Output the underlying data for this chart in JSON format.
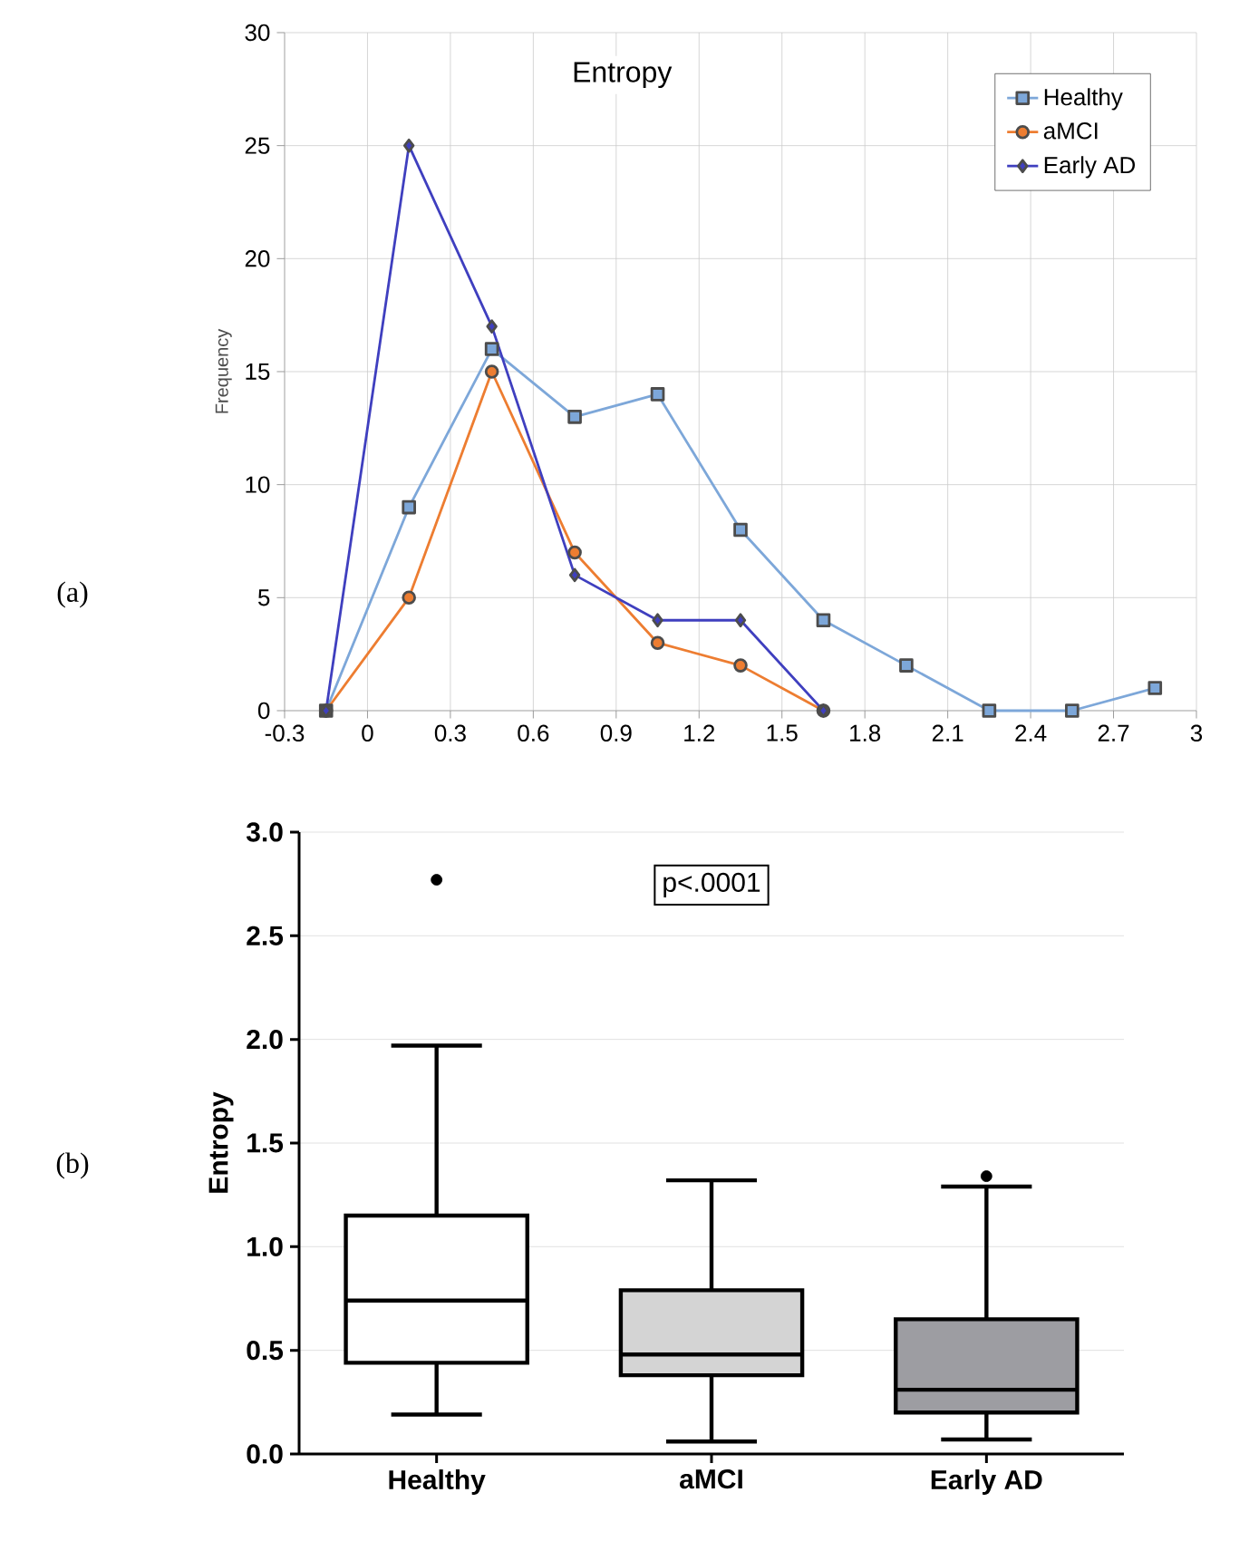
{
  "chart_data": [
    {
      "type": "line",
      "title": "Entropy",
      "ylabel": "Frequency",
      "annotations": [
        "(a)"
      ],
      "xlim": [
        -0.3,
        3
      ],
      "xticks": [
        -0.3,
        0,
        0.3,
        0.6,
        0.9,
        1.2,
        1.5,
        1.8,
        2.1,
        2.4,
        2.7,
        3
      ],
      "ylim": [
        0,
        30
      ],
      "yticks": [
        0,
        5,
        10,
        15,
        20,
        25,
        30
      ],
      "grid": true,
      "legend": "top right",
      "series": [
        {
          "name": "Healthy",
          "color": "#7da7d9",
          "marker": "square",
          "x": [
            -0.15,
            0.15,
            0.45,
            0.75,
            1.05,
            1.35,
            1.65,
            1.95,
            2.25,
            2.55,
            2.85
          ],
          "values": [
            0,
            9,
            16,
            13,
            14,
            8,
            4,
            2,
            0,
            0,
            1
          ]
        },
        {
          "name": "aMCI",
          "color": "#ed7d31",
          "marker": "circle",
          "x": [
            -0.15,
            0.15,
            0.45,
            0.75,
            1.05,
            1.35,
            1.65
          ],
          "values": [
            0,
            5,
            15,
            7,
            3,
            2,
            0
          ]
        },
        {
          "name": "Early AD",
          "color": "#3f3fbf",
          "marker": "diamond",
          "x": [
            -0.15,
            0.15,
            0.45,
            0.75,
            1.05,
            1.35,
            1.65
          ],
          "values": [
            0,
            25,
            17,
            6,
            4,
            4,
            0
          ]
        }
      ]
    },
    {
      "type": "box",
      "ylabel": "Entropy",
      "annotations": [
        "p<.0001",
        "(b)"
      ],
      "categories": [
        "Healthy",
        "aMCI",
        "Early AD"
      ],
      "colors": [
        "#ffffff",
        "#d4d4d4",
        "#9d9da2"
      ],
      "ylim": [
        0,
        3
      ],
      "yticks": [
        {
          "value": 0,
          "label": "0.0"
        },
        {
          "value": 0.5,
          "label": "0.5"
        },
        {
          "value": 1,
          "label": "1.0"
        },
        {
          "value": 1.5,
          "label": "1.5"
        },
        {
          "value": 2,
          "label": "2.0"
        },
        {
          "value": 2.5,
          "label": "2.5"
        },
        {
          "value": 3,
          "label": "3.0"
        }
      ],
      "grid": "y",
      "boxes": [
        {
          "low": 0.19,
          "q1": 0.44,
          "median": 0.74,
          "q3": 1.15,
          "high": 1.97,
          "outliers": [
            2.77
          ]
        },
        {
          "low": 0.06,
          "q1": 0.38,
          "median": 0.48,
          "q3": 0.79,
          "high": 1.32
        },
        {
          "low": 0.07,
          "q1": 0.2,
          "median": 0.31,
          "q3": 0.65,
          "high": 1.29,
          "outliers": [
            1.34
          ]
        }
      ]
    }
  ]
}
